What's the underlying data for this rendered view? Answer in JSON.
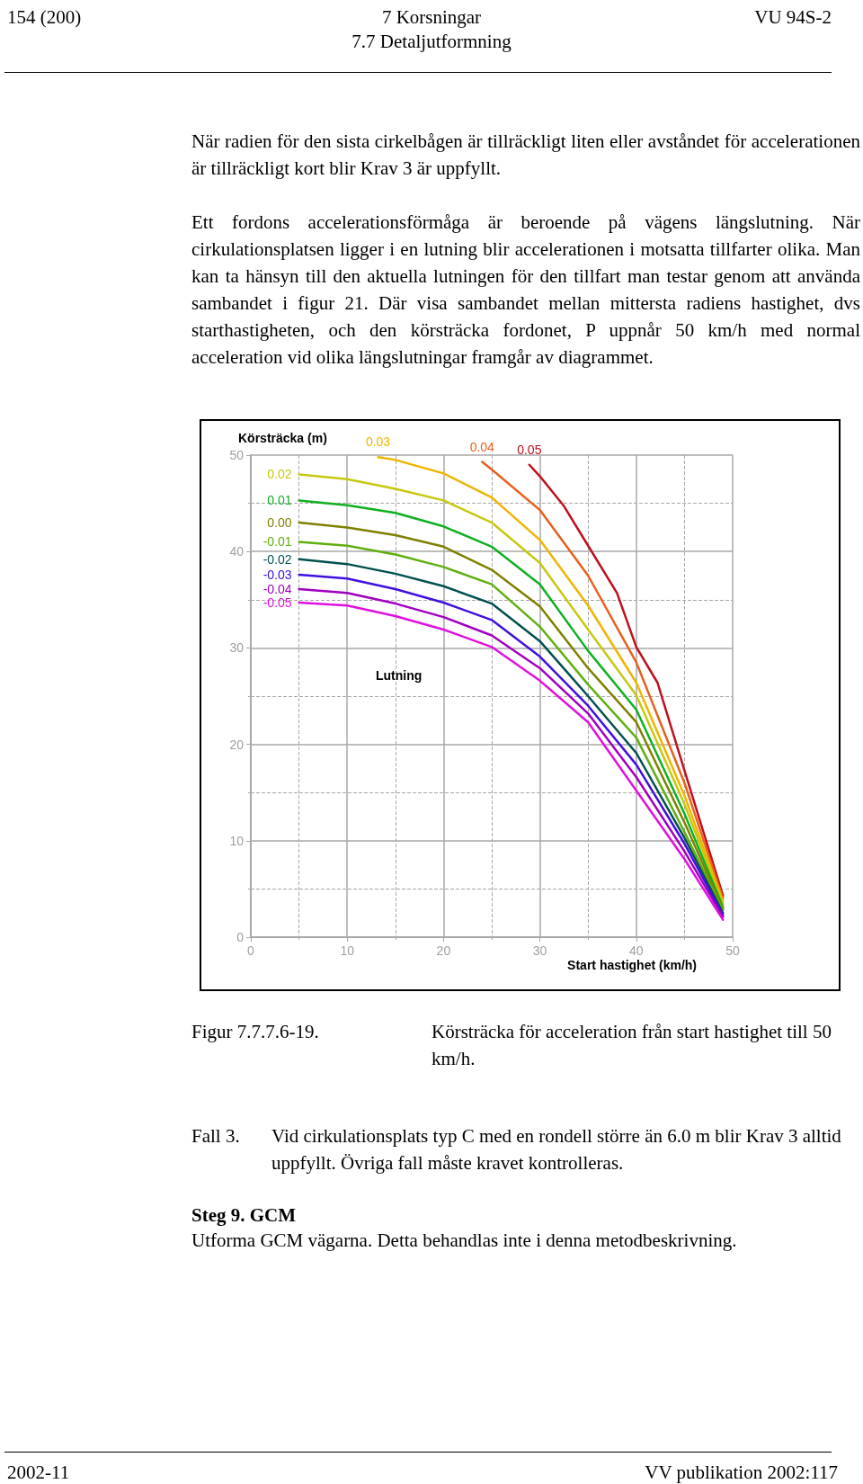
{
  "chart_data": {
    "type": "line",
    "title": "Körsträcka för acceleration från start hastighet till 50 km/h.",
    "xlabel": "Start hastighet (km/h)",
    "ylabel": "Körsträcka (m)",
    "legend_title": "Lutning",
    "xlim": [
      0,
      50
    ],
    "xticks": [
      0,
      10,
      20,
      30,
      40,
      50
    ],
    "ylim": [
      0,
      50
    ],
    "yticks": [
      0,
      10,
      20,
      30,
      40,
      50
    ],
    "grid": true,
    "marker": "none",
    "series": [
      {
        "name": "0.05",
        "color": "#c0101c",
        "x": [
          28.9,
          30,
          32.5,
          35,
          38,
          40,
          42.2,
          45,
          49
        ],
        "values": [
          49.0,
          47.8,
          44.7,
          40.6,
          35.7,
          30.1,
          26.4,
          17.3,
          4.3
        ]
      },
      {
        "name": "0.04",
        "color": "#e8601c",
        "x": [
          24,
          25,
          30,
          35,
          40,
          45,
          49
        ],
        "values": [
          49.3,
          48.5,
          44.3,
          37.5,
          28.5,
          16.0,
          4.0
        ]
      },
      {
        "name": "0.03",
        "color": "#f0b400",
        "x": [
          13.2,
          15,
          20,
          25,
          30,
          35,
          40,
          45,
          49
        ],
        "values": [
          49.8,
          49.5,
          48.1,
          45.6,
          41.2,
          34.4,
          26.4,
          14.7,
          3.7
        ]
      },
      {
        "name": "0.02",
        "color": "#c8c810",
        "x": [
          5,
          10,
          15,
          20,
          25,
          30,
          35,
          40,
          45,
          49
        ],
        "values": [
          48.0,
          47.5,
          46.5,
          45.3,
          43.0,
          38.8,
          31.9,
          25.1,
          13.8,
          3.4
        ]
      },
      {
        "name": "0.01",
        "color": "#10b020",
        "x": [
          5,
          10,
          15,
          20,
          25,
          30,
          35,
          40,
          45,
          49
        ],
        "values": [
          45.3,
          44.8,
          44.0,
          42.6,
          40.5,
          36.6,
          29.7,
          23.6,
          12.8,
          3.1
        ]
      },
      {
        "name": "0.00",
        "color": "#808000",
        "x": [
          5,
          10,
          15,
          20,
          25,
          30,
          35,
          40,
          45,
          49
        ],
        "values": [
          43.0,
          42.5,
          41.7,
          40.5,
          38.1,
          34.3,
          27.9,
          22.3,
          11.9,
          2.9
        ]
      },
      {
        "name": "-0.01",
        "color": "#60b010",
        "x": [
          5,
          10,
          15,
          20,
          25,
          30,
          35,
          40,
          45,
          49
        ],
        "values": [
          41.0,
          40.6,
          39.7,
          38.4,
          36.6,
          32.2,
          26.2,
          20.7,
          10.9,
          2.8
        ]
      },
      {
        "name": "-0.02",
        "color": "#005050",
        "x": [
          5,
          10,
          15,
          20,
          25,
          30,
          35,
          40,
          45,
          49
        ],
        "values": [
          39.2,
          38.7,
          37.7,
          36.4,
          34.6,
          30.7,
          25.0,
          19.1,
          10.3,
          2.5
        ]
      },
      {
        "name": "-0.03",
        "color": "#4010e0",
        "x": [
          5,
          10,
          15,
          20,
          25,
          30,
          35,
          40,
          45,
          49
        ],
        "values": [
          37.6,
          37.2,
          36.1,
          34.7,
          32.9,
          29.1,
          24.0,
          17.9,
          9.7,
          2.3
        ]
      },
      {
        "name": "-0.04",
        "color": "#a000c0",
        "x": [
          5,
          10,
          15,
          20,
          25,
          30,
          35,
          40,
          45,
          49
        ],
        "values": [
          36.1,
          35.7,
          34.6,
          33.2,
          31.3,
          27.9,
          23.2,
          16.6,
          8.9,
          2.1
        ]
      },
      {
        "name": "-0.05",
        "color": "#e010e0",
        "x": [
          5,
          10,
          15,
          20,
          25,
          30,
          35,
          40,
          45,
          49
        ],
        "values": [
          34.7,
          34.4,
          33.3,
          31.9,
          30.1,
          26.6,
          22.3,
          15.2,
          8.1,
          1.8
        ]
      }
    ],
    "annotations": [
      "154 (200)",
      "7 Korsningar",
      "VU 94S-2",
      "7.7 Detaljutformning",
      "När radien för den sista cirkelbågen är tillräckligt liten eller avståndet för accelerationen är tillräckligt kort blir Krav 3 är uppfyllt.",
      "Ett fordons accelerationsförmåga är beroende på vägens längslutning. När cirkulationsplatsen ligger i en lutning blir accelerationen i motsatta tillfarter olika. Man kan ta hänsyn till den aktuella lutningen för den tillfart man testar genom att använda sambandet i figur 21. Där visa sambandet mellan mittersta radiens hastighet, dvs starthastigheten, och den körsträcka fordonet, P uppnår 50 km/h med normal acceleration vid olika längslutningar framgår av diagrammet.",
      "Figur 7.7.7.6-19.",
      "Fall 3.",
      "Vid cirkulationsplats typ C med en rondell större än 6.0 m blir Krav 3 alltid uppfyllt. Övriga fall måste kravet kontrolleras.",
      "Steg 9. GCM",
      "Utforma GCM vägarna. Detta behandlas inte i denna metodbeskrivning.",
      "2002-11",
      "VV publikation 2002:117"
    ]
  }
}
